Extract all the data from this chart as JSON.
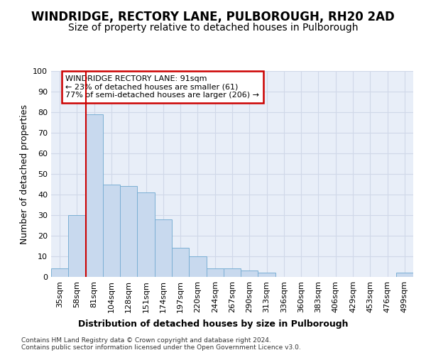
{
  "title": "WINDRIDGE, RECTORY LANE, PULBOROUGH, RH20 2AD",
  "subtitle": "Size of property relative to detached houses in Pulborough",
  "xlabel": "Distribution of detached houses by size in Pulborough",
  "ylabel": "Number of detached properties",
  "bar_values": [
    4,
    30,
    79,
    45,
    44,
    41,
    28,
    14,
    10,
    4,
    4,
    3,
    2,
    0,
    0,
    0,
    0,
    0,
    0,
    0,
    2
  ],
  "bar_labels": [
    "35sqm",
    "58sqm",
    "81sqm",
    "104sqm",
    "128sqm",
    "151sqm",
    "174sqm",
    "197sqm",
    "220sqm",
    "244sqm",
    "267sqm",
    "290sqm",
    "313sqm",
    "336sqm",
    "360sqm",
    "383sqm",
    "406sqm",
    "429sqm",
    "453sqm",
    "476sqm",
    "499sqm"
  ],
  "bar_color": "#c8d9ee",
  "bar_edge_color": "#7bafd4",
  "highlight_bar_index": 2,
  "highlight_line_color": "#cc0000",
  "annotation_text": "WINDRIDGE RECTORY LANE: 91sqm\n← 23% of detached houses are smaller (61)\n77% of semi-detached houses are larger (206) →",
  "annotation_box_color": "#ffffff",
  "annotation_box_edge_color": "#cc0000",
  "footer": "Contains HM Land Registry data © Crown copyright and database right 2024.\nContains public sector information licensed under the Open Government Licence v3.0.",
  "ylim": [
    0,
    100
  ],
  "yticks": [
    0,
    10,
    20,
    30,
    40,
    50,
    60,
    70,
    80,
    90,
    100
  ],
  "background_color": "#e8eef8",
  "grid_color": "#d0d8e8",
  "title_fontsize": 12,
  "subtitle_fontsize": 10,
  "xlabel_fontsize": 9,
  "ylabel_fontsize": 9,
  "tick_fontsize": 8,
  "annotation_fontsize": 8
}
